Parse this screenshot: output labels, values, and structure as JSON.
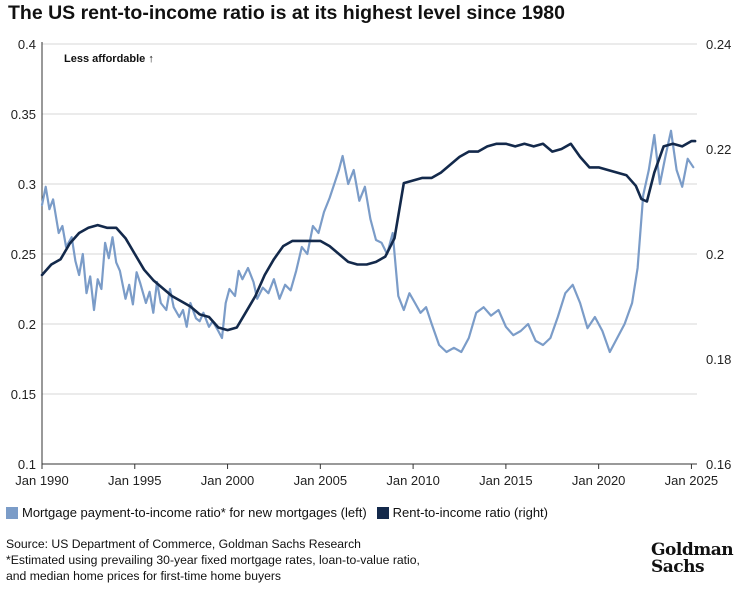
{
  "title": "The US rent-to-income ratio is at its highest level since 1980",
  "annotation": "Less affordable ↑",
  "legend": {
    "mortgage": "Mortgage payment-to-income ratio* for new mortgages (left)",
    "rent": "Rent-to-income ratio (right)"
  },
  "footer": {
    "source": "Source: US Department of Commerce, Goldman Sachs Research",
    "note1": "*Estimated using prevailing 30-year fixed mortgage rates, loan-to-value ratio,",
    "note2": "and median home prices for first-time home buyers"
  },
  "logo": {
    "line1": "Goldman",
    "line2": "Sachs"
  },
  "chart_data": {
    "type": "line",
    "x_range": [
      1990.0,
      2025.3
    ],
    "x_ticks": [
      {
        "value": 1990,
        "label": "Jan 1990"
      },
      {
        "value": 1995,
        "label": "Jan 1995"
      },
      {
        "value": 2000,
        "label": "Jan 2000"
      },
      {
        "value": 2005,
        "label": "Jan 2005"
      },
      {
        "value": 2010,
        "label": "Jan 2010"
      },
      {
        "value": 2015,
        "label": "Jan 2015"
      },
      {
        "value": 2020,
        "label": "Jan 2020"
      },
      {
        "value": 2025,
        "label": "Jan 2025"
      }
    ],
    "y_left": {
      "range": [
        0.1,
        0.4
      ],
      "ticks": [
        "0.1",
        "0.15",
        "0.2",
        "0.25",
        "0.3",
        "0.35",
        "0.4"
      ]
    },
    "y_right": {
      "range": [
        0.16,
        0.24
      ],
      "ticks": [
        "0.16",
        "0.18",
        "0.2",
        "0.22",
        "0.24"
      ]
    },
    "colors": {
      "mortgage": "#7b9cc8",
      "rent": "#13294b",
      "axis": "#333333",
      "grid": "#d7d7d7"
    },
    "series": [
      {
        "name": "Mortgage payment-to-income ratio* for new mortgages (left)",
        "axis": "left",
        "x": [
          1990.0,
          1990.2,
          1990.4,
          1990.6,
          1990.9,
          1991.1,
          1991.3,
          1991.6,
          1991.8,
          1992.0,
          1992.2,
          1992.4,
          1992.6,
          1992.8,
          1993.0,
          1993.2,
          1993.4,
          1993.6,
          1993.8,
          1994.0,
          1994.2,
          1994.5,
          1994.7,
          1994.9,
          1995.1,
          1995.3,
          1995.6,
          1995.8,
          1996.0,
          1996.2,
          1996.4,
          1996.7,
          1996.9,
          1997.1,
          1997.4,
          1997.6,
          1997.8,
          1998.0,
          1998.3,
          1998.5,
          1998.7,
          1999.0,
          1999.2,
          1999.5,
          1999.7,
          1999.9,
          2000.1,
          2000.4,
          2000.6,
          2000.8,
          2001.1,
          2001.4,
          2001.6,
          2001.9,
          2002.2,
          2002.5,
          2002.8,
          2003.1,
          2003.4,
          2003.7,
          2004.0,
          2004.3,
          2004.6,
          2004.9,
          2005.2,
          2005.5,
          2005.8,
          2006.0,
          2006.2,
          2006.5,
          2006.8,
          2007.1,
          2007.4,
          2007.7,
          2008.0,
          2008.3,
          2008.6,
          2008.9,
          2009.2,
          2009.5,
          2009.8,
          2010.1,
          2010.4,
          2010.7,
          2011.0,
          2011.4,
          2011.8,
          2012.2,
          2012.6,
          2013.0,
          2013.4,
          2013.8,
          2014.2,
          2014.6,
          2015.0,
          2015.4,
          2015.8,
          2016.2,
          2016.6,
          2017.0,
          2017.4,
          2017.8,
          2018.2,
          2018.6,
          2019.0,
          2019.4,
          2019.8,
          2020.2,
          2020.6,
          2021.0,
          2021.4,
          2021.8,
          2022.1,
          2022.4,
          2022.7,
          2023.0,
          2023.3,
          2023.6,
          2023.9,
          2024.2,
          2024.5,
          2024.8,
          2025.1
        ],
        "values": [
          0.285,
          0.298,
          0.282,
          0.289,
          0.265,
          0.27,
          0.255,
          0.262,
          0.245,
          0.235,
          0.25,
          0.222,
          0.234,
          0.21,
          0.232,
          0.225,
          0.258,
          0.247,
          0.262,
          0.244,
          0.238,
          0.218,
          0.228,
          0.214,
          0.237,
          0.229,
          0.215,
          0.223,
          0.208,
          0.23,
          0.215,
          0.21,
          0.225,
          0.212,
          0.205,
          0.21,
          0.198,
          0.215,
          0.204,
          0.202,
          0.208,
          0.198,
          0.202,
          0.195,
          0.19,
          0.215,
          0.225,
          0.22,
          0.238,
          0.232,
          0.24,
          0.23,
          0.218,
          0.226,
          0.222,
          0.232,
          0.218,
          0.228,
          0.224,
          0.238,
          0.255,
          0.25,
          0.27,
          0.265,
          0.28,
          0.29,
          0.302,
          0.31,
          0.32,
          0.3,
          0.31,
          0.288,
          0.298,
          0.275,
          0.26,
          0.258,
          0.25,
          0.265,
          0.22,
          0.21,
          0.222,
          0.215,
          0.208,
          0.212,
          0.2,
          0.185,
          0.18,
          0.183,
          0.18,
          0.19,
          0.208,
          0.212,
          0.206,
          0.21,
          0.198,
          0.192,
          0.195,
          0.2,
          0.188,
          0.185,
          0.19,
          0.205,
          0.222,
          0.228,
          0.215,
          0.197,
          0.205,
          0.195,
          0.18,
          0.19,
          0.2,
          0.215,
          0.24,
          0.292,
          0.31,
          0.335,
          0.3,
          0.32,
          0.338,
          0.31,
          0.298,
          0.318,
          0.312
        ]
      },
      {
        "name": "Rent-to-income ratio (right)",
        "axis": "right",
        "x": [
          1990.0,
          1990.5,
          1991.0,
          1991.5,
          1992.0,
          1992.5,
          1993.0,
          1993.5,
          1994.0,
          1994.5,
          1995.0,
          1995.5,
          1996.0,
          1996.5,
          1997.0,
          1997.5,
          1998.0,
          1998.5,
          1999.0,
          1999.5,
          2000.0,
          2000.5,
          2001.0,
          2001.5,
          2002.0,
          2002.5,
          2003.0,
          2003.5,
          2004.0,
          2004.5,
          2005.0,
          2005.5,
          2006.0,
          2006.5,
          2007.0,
          2007.5,
          2008.0,
          2008.5,
          2009.0,
          2009.5,
          2010.0,
          2010.5,
          2011.0,
          2011.5,
          2012.0,
          2012.5,
          2013.0,
          2013.5,
          2014.0,
          2014.5,
          2015.0,
          2015.5,
          2016.0,
          2016.5,
          2017.0,
          2017.5,
          2018.0,
          2018.5,
          2019.0,
          2019.5,
          2020.0,
          2020.5,
          2021.0,
          2021.5,
          2022.0,
          2022.3,
          2022.6,
          2023.0,
          2023.5,
          2024.0,
          2024.5,
          2025.0,
          2025.2
        ],
        "values": [
          0.196,
          0.198,
          0.199,
          0.202,
          0.204,
          0.205,
          0.2055,
          0.205,
          0.205,
          0.203,
          0.2,
          0.197,
          0.195,
          0.1935,
          0.192,
          0.191,
          0.19,
          0.1885,
          0.188,
          0.186,
          0.1855,
          0.186,
          0.189,
          0.192,
          0.196,
          0.199,
          0.2015,
          0.2025,
          0.2025,
          0.2025,
          0.2025,
          0.2015,
          0.2,
          0.1985,
          0.198,
          0.198,
          0.1985,
          0.1995,
          0.203,
          0.2135,
          0.214,
          0.2145,
          0.2145,
          0.2155,
          0.217,
          0.2185,
          0.2195,
          0.2195,
          0.2205,
          0.221,
          0.221,
          0.2205,
          0.221,
          0.2205,
          0.221,
          0.2195,
          0.22,
          0.221,
          0.2185,
          0.2165,
          0.2165,
          0.216,
          0.2155,
          0.215,
          0.213,
          0.2105,
          0.21,
          0.2155,
          0.2205,
          0.221,
          0.2205,
          0.2215,
          0.2215
        ]
      }
    ]
  }
}
